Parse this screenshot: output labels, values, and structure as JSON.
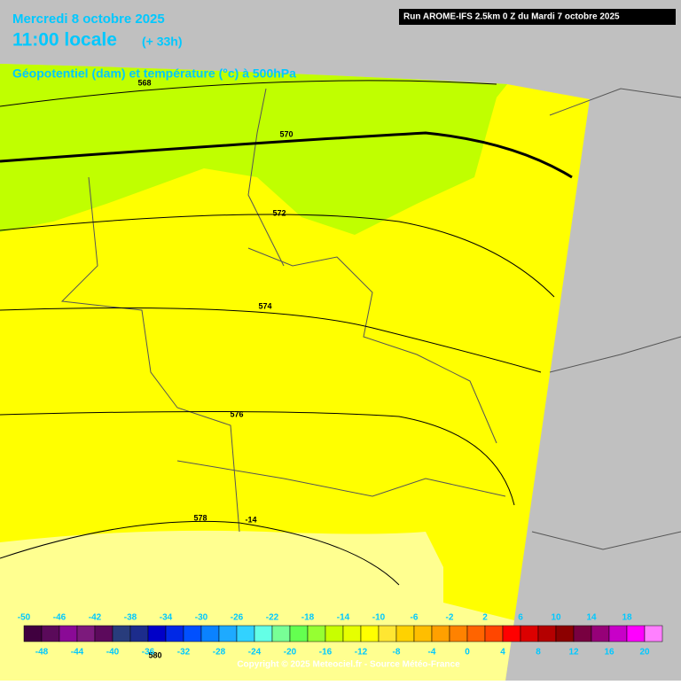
{
  "header": {
    "date": "Mercredi 8 octobre 2025",
    "time": "11:00 locale",
    "lead": "(+ 33h)",
    "run": "Run AROME-IFS 2.5km 0 Z du Mardi 7 octobre 2025",
    "subtitle": "Géopotentiel (dam) et température (°c) à 500hPa"
  },
  "map": {
    "contour_labels": [
      "568",
      "570",
      "572",
      "574",
      "576",
      "578",
      "580",
      "-14"
    ]
  },
  "colorbar": {
    "labels_top": [
      -50,
      -46,
      -42,
      -38,
      -34,
      -30,
      -26,
      -22,
      -18,
      -14,
      -10,
      -6,
      -2,
      2,
      6,
      10,
      14,
      18
    ],
    "labels_bottom": [
      -48,
      -44,
      -40,
      -36,
      -32,
      -28,
      -24,
      -20,
      -16,
      -12,
      -8,
      -4,
      0,
      4,
      8,
      12,
      16,
      20
    ],
    "colors": [
      "#40003f",
      "#5a0a5a",
      "#8a0a96",
      "#7c1a7c",
      "#5c0a5c",
      "#283c7c",
      "#1c2c8c",
      "#0000c8",
      "#0028e6",
      "#0050ff",
      "#0a82ff",
      "#1eaaff",
      "#32d2ff",
      "#64ffe6",
      "#78ff96",
      "#64ff50",
      "#96ff32",
      "#c8ff00",
      "#e6ff00",
      "#ffff00",
      "#ffe632",
      "#ffd200",
      "#ffbe00",
      "#ffa000",
      "#ff8200",
      "#ff6400",
      "#ff4600",
      "#ff0000",
      "#dc0000",
      "#b40000",
      "#8c0000",
      "#780040",
      "#960078",
      "#c800c8",
      "#ff00ff",
      "#ff80ff"
    ]
  },
  "footer": {
    "copyright": "Copyright © 2025 Meteociel.fr - Source Météo-France"
  }
}
